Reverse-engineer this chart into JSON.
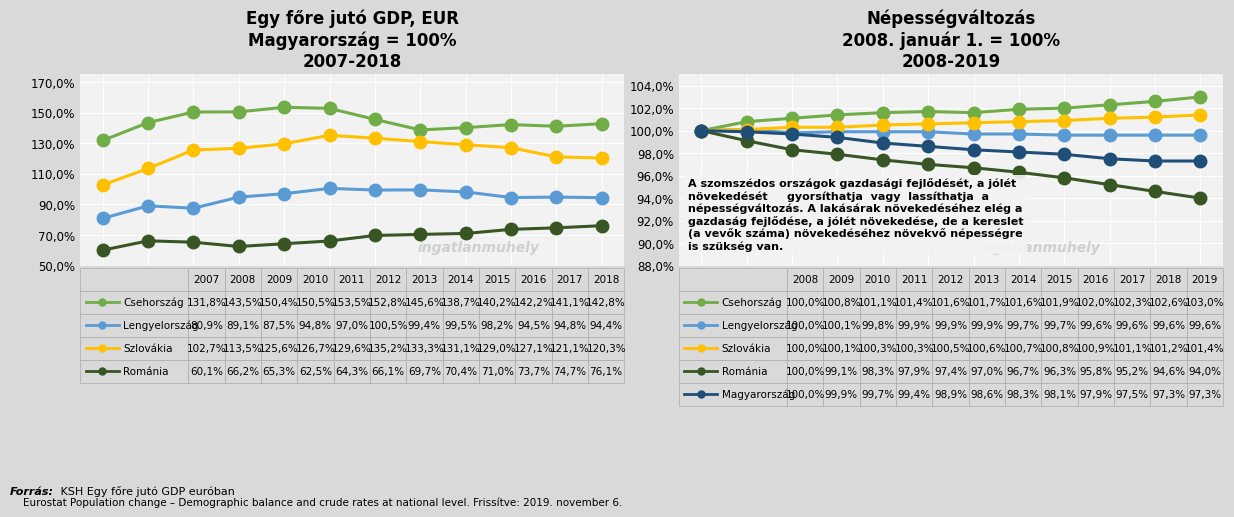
{
  "gdp_title": "Egy főre jutó GDP, EUR\nMagyarország = 100%\n2007-2018",
  "pop_title": "Népességváltozás\n2008. január 1. = 100%\n2008-2019",
  "footer_bold": "Forrás:",
  "footer1": " KSH Egy főre jutó GDP euróban",
  "footer2": "    Eurostat Population change – Demographic balance and crude rates at national level. Frissítve: 2019. november 6.",
  "gdp_years": [
    2007,
    2008,
    2009,
    2010,
    2011,
    2012,
    2013,
    2014,
    2015,
    2016,
    2017,
    2018
  ],
  "pop_years": [
    2008,
    2009,
    2010,
    2011,
    2012,
    2013,
    2014,
    2015,
    2016,
    2017,
    2018,
    2019
  ],
  "gdp_data": {
    "Csehország": [
      131.8,
      143.5,
      150.4,
      150.5,
      153.5,
      152.8,
      145.6,
      138.7,
      140.2,
      142.2,
      141.1,
      142.8
    ],
    "Lengyelország": [
      80.9,
      89.1,
      87.5,
      94.8,
      97.0,
      100.5,
      99.4,
      99.5,
      98.2,
      94.5,
      94.8,
      94.4
    ],
    "Szlovákia": [
      102.7,
      113.5,
      125.6,
      126.7,
      129.6,
      135.2,
      133.3,
      131.1,
      129.0,
      127.1,
      121.1,
      120.3
    ],
    "Románia": [
      60.1,
      66.2,
      65.3,
      62.5,
      64.3,
      66.1,
      69.7,
      70.4,
      71.0,
      73.7,
      74.7,
      76.1
    ]
  },
  "pop_data": {
    "Csehország": [
      100.0,
      100.8,
      101.1,
      101.4,
      101.6,
      101.7,
      101.6,
      101.9,
      102.0,
      102.3,
      102.6,
      103.0
    ],
    "Lengyelország": [
      100.0,
      100.1,
      99.8,
      99.9,
      99.9,
      99.9,
      99.7,
      99.7,
      99.6,
      99.6,
      99.6,
      99.6
    ],
    "Szlovákia": [
      100.0,
      100.1,
      100.3,
      100.3,
      100.5,
      100.6,
      100.7,
      100.8,
      100.9,
      101.1,
      101.2,
      101.4
    ],
    "Románia": [
      100.0,
      99.1,
      98.3,
      97.9,
      97.4,
      97.0,
      96.7,
      96.3,
      95.8,
      95.2,
      94.6,
      94.0
    ],
    "Magyarország": [
      100.0,
      99.9,
      99.7,
      99.4,
      98.9,
      98.6,
      98.3,
      98.1,
      97.9,
      97.5,
      97.3,
      97.3
    ]
  },
  "colors": {
    "Csehország": "#70ad47",
    "Lengyelország": "#5b9bd5",
    "Szlovákia": "#ffc000",
    "Románia": "#375623",
    "Magyarország": "#1f4e79"
  },
  "annotation": "A szomszédos országok gazdasági fejlődését, a jólét\nnövekedését     gyorsíthatja  vagy  lassíthatja  a\nnépességváltozás. A lakásárak növekedéséhez elég a\ngazdaság fejlődése, a jólét növekedése, de a kereslet\n(a vevők száma) növekedéséhez növekvő népességre\nis szükség van.",
  "watermark": "ingatlanmuhely",
  "bg_color": "#d9d9d9",
  "plot_bg": "#f2f2f2",
  "gdp_ylim": [
    50,
    175
  ],
  "gdp_yticks": [
    50,
    70,
    90,
    110,
    130,
    150,
    170
  ],
  "pop_ylim": [
    88,
    105
  ],
  "pop_yticks": [
    88,
    90,
    92,
    94,
    96,
    98,
    100,
    102,
    104
  ]
}
